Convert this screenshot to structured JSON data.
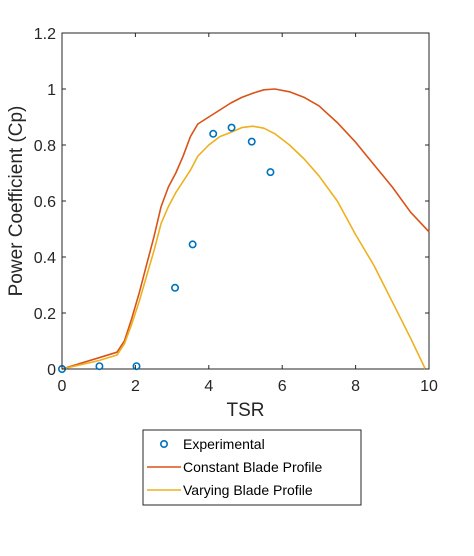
{
  "chart_data": {
    "type": "line",
    "xlabel": "TSR",
    "ylabel": "Power Coefficient (Cp)",
    "xlim": [
      0,
      10
    ],
    "ylim": [
      0,
      1.2
    ],
    "xticks": [
      "0",
      "2",
      "4",
      "6",
      "8",
      "10"
    ],
    "yticks": [
      "0",
      "0.2",
      "0.4",
      "0.6",
      "0.8",
      "1",
      "1.2"
    ],
    "grid": false,
    "legend_position": "bottom-center, outside plot",
    "series": [
      {
        "name": "Experimental",
        "kind": "scatter",
        "marker": "open-circle",
        "color": "#0072BD",
        "x": [
          0,
          1.02,
          2.03,
          3.08,
          3.56,
          4.12,
          4.62,
          5.17,
          5.68
        ],
        "y": [
          0.0,
          0.01,
          0.01,
          0.29,
          0.445,
          0.84,
          0.862,
          0.812,
          0.703
        ]
      },
      {
        "name": "Constant Blade Profile",
        "kind": "line",
        "color": "#D95319",
        "x": [
          0,
          0.5,
          1.0,
          1.5,
          1.7,
          1.9,
          2.1,
          2.3,
          2.5,
          2.7,
          2.9,
          3.1,
          3.3,
          3.5,
          3.7,
          4.0,
          4.3,
          4.6,
          4.9,
          5.2,
          5.5,
          5.8,
          6.2,
          6.6,
          7.0,
          7.5,
          8.0,
          8.5,
          9.0,
          9.5,
          10.0
        ],
        "y": [
          0.0,
          0.02,
          0.04,
          0.06,
          0.1,
          0.18,
          0.27,
          0.37,
          0.47,
          0.58,
          0.65,
          0.7,
          0.76,
          0.83,
          0.875,
          0.9,
          0.925,
          0.95,
          0.97,
          0.985,
          0.997,
          1.0,
          0.99,
          0.97,
          0.94,
          0.88,
          0.81,
          0.73,
          0.65,
          0.56,
          0.49
        ]
      },
      {
        "name": "Varying Blade Profile",
        "kind": "line",
        "color": "#EDB120",
        "x": [
          0,
          0.5,
          1.0,
          1.5,
          1.7,
          1.9,
          2.1,
          2.3,
          2.5,
          2.7,
          2.9,
          3.1,
          3.3,
          3.5,
          3.7,
          4.0,
          4.3,
          4.6,
          4.9,
          5.2,
          5.5,
          5.8,
          6.2,
          6.6,
          7.0,
          7.5,
          8.0,
          8.5,
          9.0,
          9.5,
          9.9
        ],
        "y": [
          0.0,
          0.015,
          0.03,
          0.05,
          0.09,
          0.16,
          0.24,
          0.33,
          0.42,
          0.52,
          0.58,
          0.63,
          0.67,
          0.71,
          0.76,
          0.8,
          0.83,
          0.845,
          0.862,
          0.867,
          0.86,
          0.84,
          0.8,
          0.75,
          0.69,
          0.6,
          0.48,
          0.37,
          0.24,
          0.11,
          0.0
        ]
      }
    ]
  }
}
